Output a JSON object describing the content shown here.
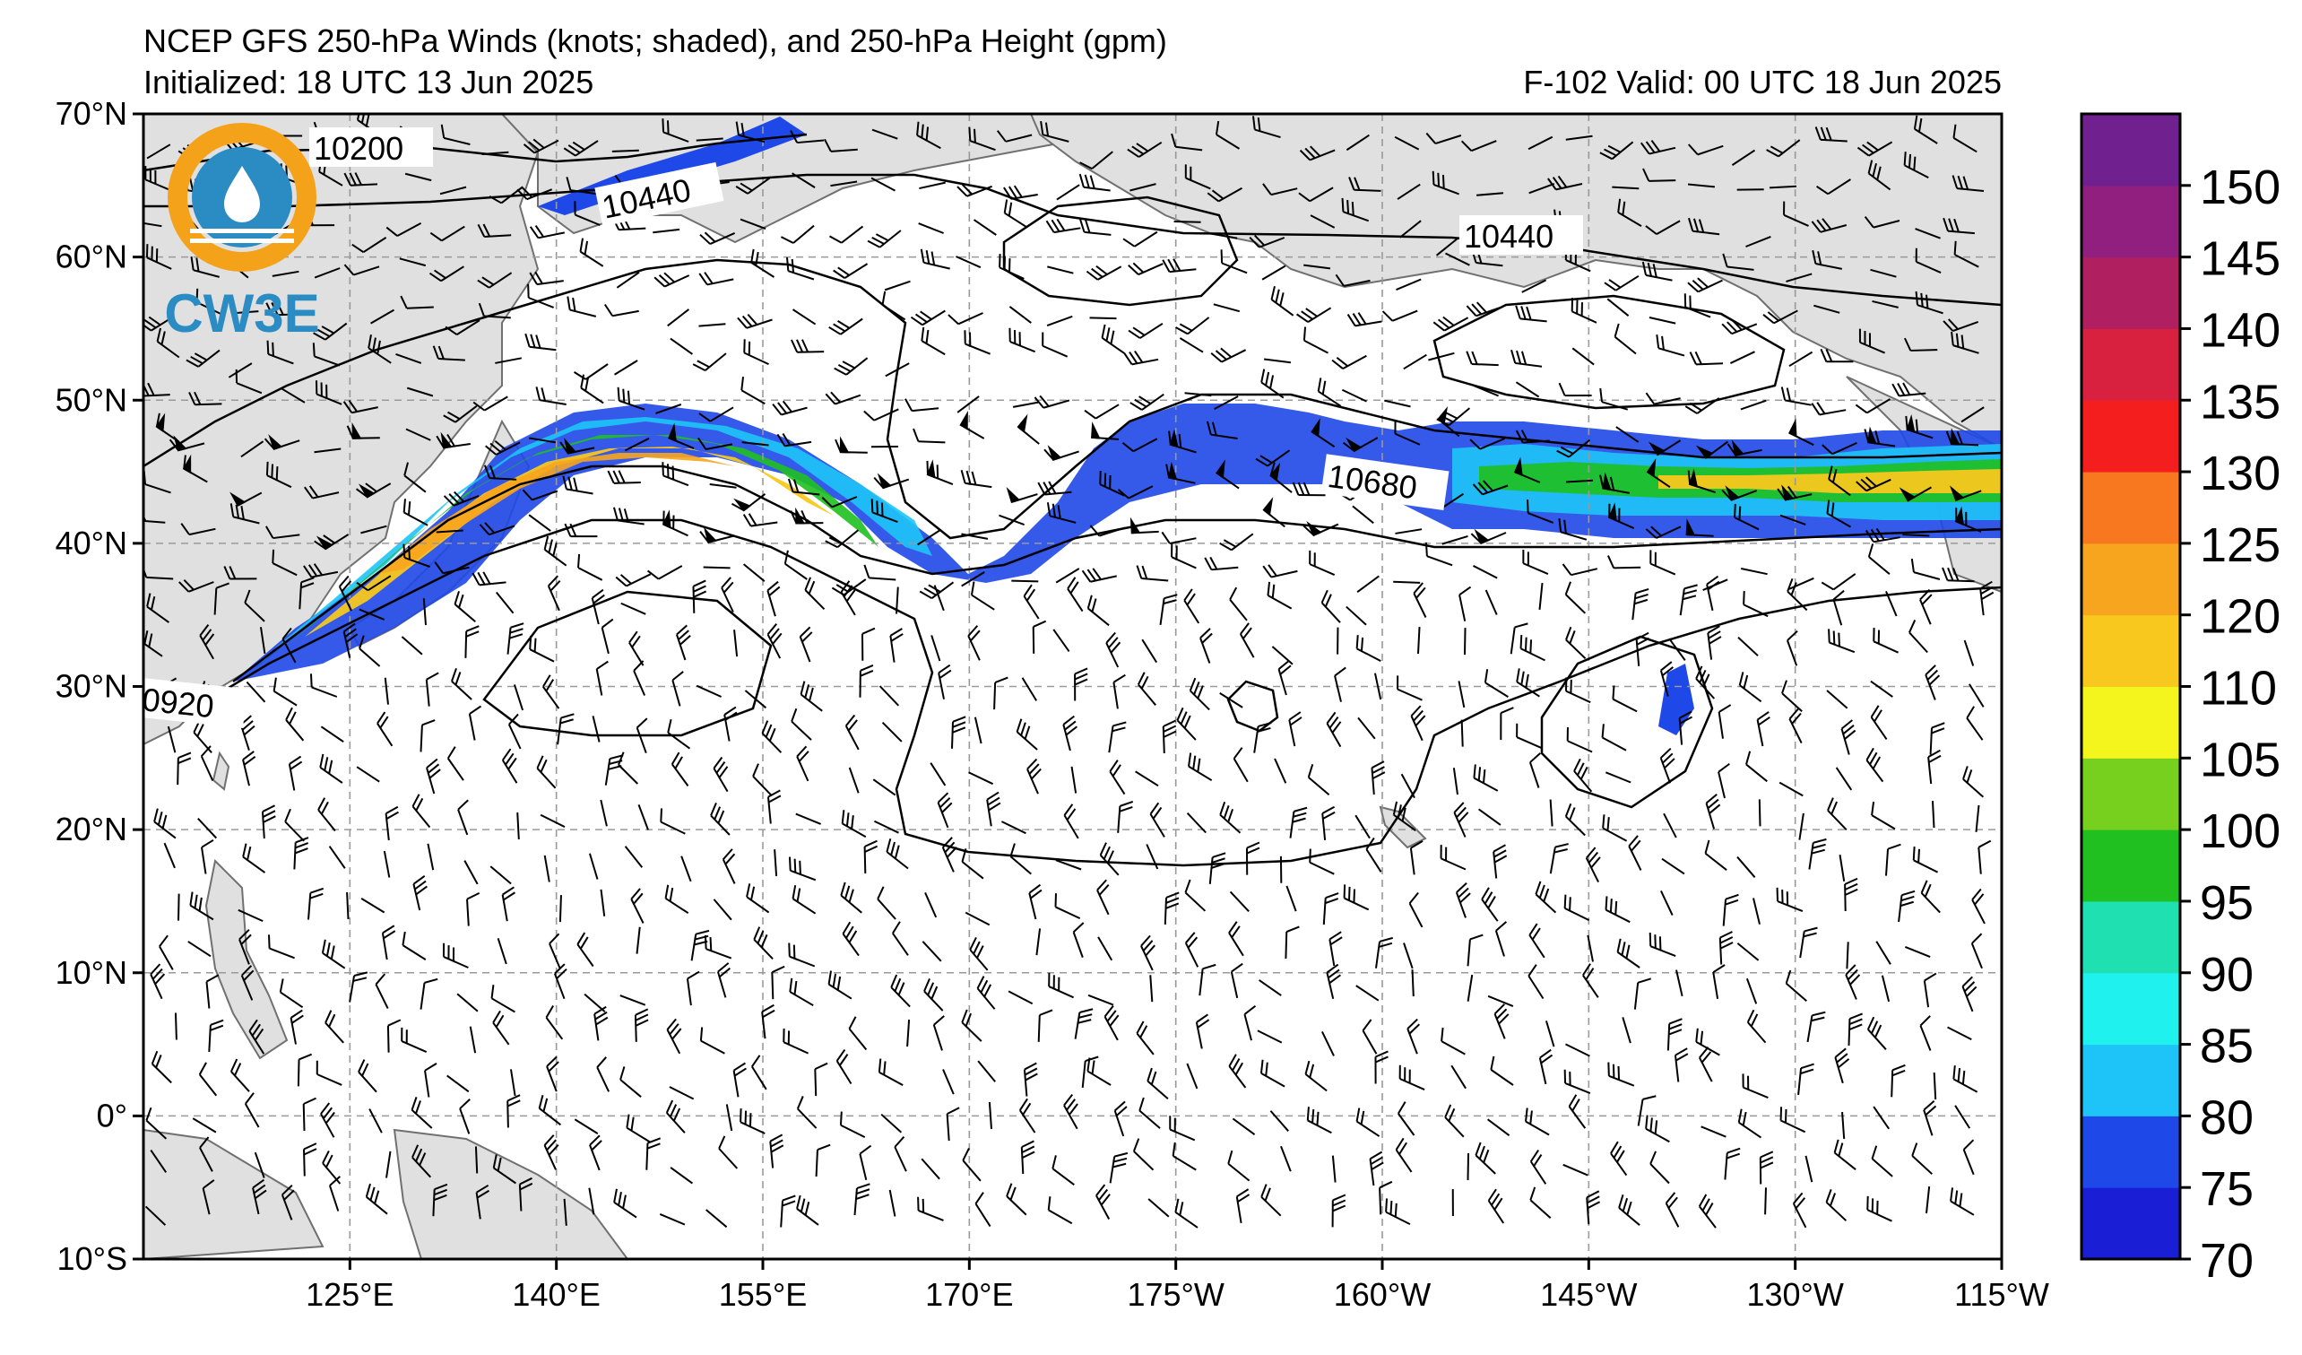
{
  "header": {
    "title": "NCEP GFS 250-hPa Winds (knots; shaded), and 250-hPa Height (gpm)",
    "initialized": "Initialized: 18 UTC 13 Jun 2025",
    "valid": "F-102  Valid: 00 UTC 18 Jun 2025"
  },
  "logo": {
    "text": "CW3E",
    "colors": {
      "ring": "#f5a21b",
      "blue": "#2b8cc4",
      "drop": "#ffffff"
    }
  },
  "map": {
    "lat_labels": [
      "70°N",
      "60°N",
      "50°N",
      "40°N",
      "30°N",
      "20°N",
      "10°N",
      "0°",
      "10°S"
    ],
    "lon_labels": [
      "125°E",
      "140°E",
      "155°E",
      "170°E",
      "175°W",
      "160°W",
      "145°W",
      "130°W",
      "115°W"
    ],
    "extent": {
      "lon": [
        110,
        245
      ],
      "lat": [
        -10,
        70
      ]
    },
    "land_color": "#e0e0e0",
    "coast_color": "#707070",
    "grid": "dashed"
  },
  "contour_labels": [
    "10200",
    "10440",
    "10440",
    "10680",
    "0920"
  ],
  "colorbar": {
    "ticks": [
      "70",
      "75",
      "80",
      "85",
      "90",
      "95",
      "100",
      "105",
      "110",
      "120",
      "125",
      "130",
      "135",
      "140",
      "145",
      "150"
    ],
    "colors": [
      "#1a1fd6",
      "#1f48e8",
      "#1ec4f7",
      "#1ff2ee",
      "#1fe0b0",
      "#1fc01f",
      "#78d01e",
      "#f5f51e",
      "#f8c81e",
      "#f7a51e",
      "#f7781e",
      "#f51e1e",
      "#d8203f",
      "#b01f60",
      "#901f80",
      "#70208f"
    ]
  }
}
